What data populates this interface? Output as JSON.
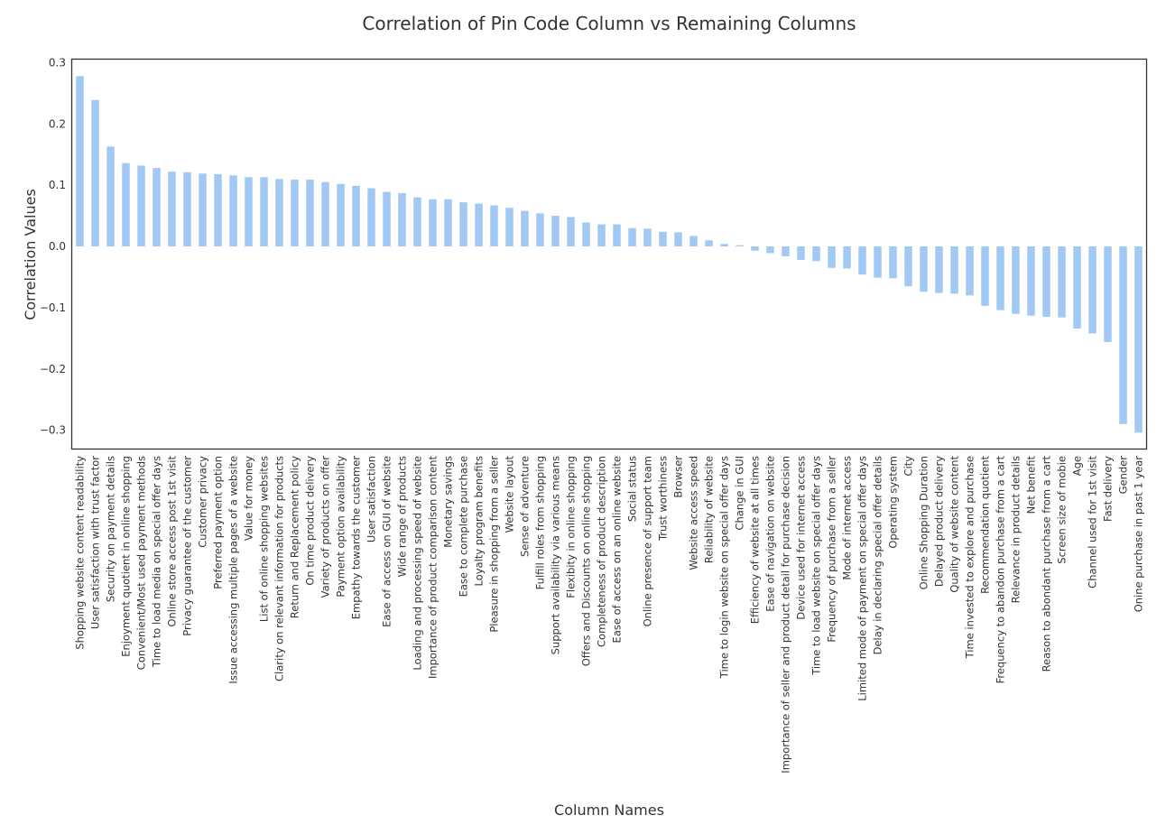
{
  "chart_data": {
    "type": "bar",
    "title": "Correlation of Pin Code Column vs Remaining Columns",
    "xlabel": "Column Names",
    "ylabel": "Correlation Values",
    "ylim": [
      -0.33,
      0.305
    ],
    "yticks": [
      0.3,
      0.2,
      0.1,
      0.0,
      -0.1,
      -0.2,
      -0.3
    ],
    "ytick_labels": [
      "0.3",
      "0.2",
      "0.1",
      "0.0",
      "−0.1",
      "−0.2",
      "−0.3"
    ],
    "grid": false,
    "bar_color": "#a1c9f4",
    "categories": [
      "Shopping website content readability",
      "User satisfaction with trust factor",
      "Security on payment details",
      "Enjoyment quotient in online shopping",
      "Convenient/Most used payment methods",
      "Time to load media on special offer days",
      "Online store access post 1st visit",
      "Privacy guarantee of the customer",
      "Customer privacy",
      "Preferred payment option",
      "Issue accessing multiple pages of a website",
      "Value for money",
      "List of online shopping websites",
      "Clarity on relevant information for products",
      "Return and Replacement policy",
      "On time product delivery",
      "Variety of products on offer",
      "Payment option availability",
      "Empathy towards the customer",
      "User satisfaction",
      "Ease of access on GUI of website",
      "Wide range of products",
      "Loading and processing speed of website",
      "Importance of product comparison content",
      "Monetary savings",
      "Ease to complete purchase",
      "Loyalty program benefits",
      "Pleasure in shopping from a seller",
      "Website layout",
      "Sense of adventure",
      "Fulfill roles from shopping",
      "Support availability via various means",
      "Flexibity in online shopping",
      "Offers and Discounts on online shopping",
      "Completeness of product description",
      "Ease of access on an online website",
      "Social status",
      "Online presence of support team",
      "Trust worthiness",
      "Browser",
      "Website access speed",
      "Reliability of website",
      "Time to login website on special offer days",
      "Change in GUI",
      "Efficiency of website at all times",
      "Ease of navigation on website",
      "Importance of seller and product detail for purchase decision",
      "Device used for internet access",
      "Time to load website on special offer days",
      "Frequency of purchase from a seller",
      "Mode of internet access",
      "Limited mode of payment on special offer days",
      "Delay in declaring special offer details",
      "Operating system",
      "City",
      "Online Shopping Duration",
      "Delayed product delivery",
      "Quality of website content",
      "Time invested to explore and purchase",
      "Recommendation quotient",
      "Frequency to abandon purchase from a cart",
      "Relevance in product details",
      "Net benefit",
      "Reason to abondant purchase from a cart",
      "Screen size of mobie",
      "Age",
      "Channel used for 1st visit",
      "Fast delivery",
      "Gender",
      "Onine purchase in past 1 year"
    ],
    "values": [
      0.278,
      0.239,
      0.163,
      0.136,
      0.132,
      0.128,
      0.122,
      0.121,
      0.119,
      0.118,
      0.116,
      0.113,
      0.113,
      0.11,
      0.109,
      0.109,
      0.105,
      0.102,
      0.099,
      0.095,
      0.089,
      0.087,
      0.08,
      0.077,
      0.077,
      0.072,
      0.07,
      0.067,
      0.063,
      0.058,
      0.054,
      0.05,
      0.048,
      0.039,
      0.036,
      0.036,
      0.03,
      0.029,
      0.024,
      0.023,
      0.017,
      0.01,
      0.004,
      0.002,
      -0.007,
      -0.011,
      -0.016,
      -0.022,
      -0.024,
      -0.035,
      -0.036,
      -0.046,
      -0.051,
      -0.052,
      -0.065,
      -0.074,
      -0.076,
      -0.077,
      -0.08,
      -0.097,
      -0.104,
      -0.11,
      -0.113,
      -0.115,
      -0.116,
      -0.134,
      -0.142,
      -0.156,
      -0.29,
      -0.304
    ]
  }
}
